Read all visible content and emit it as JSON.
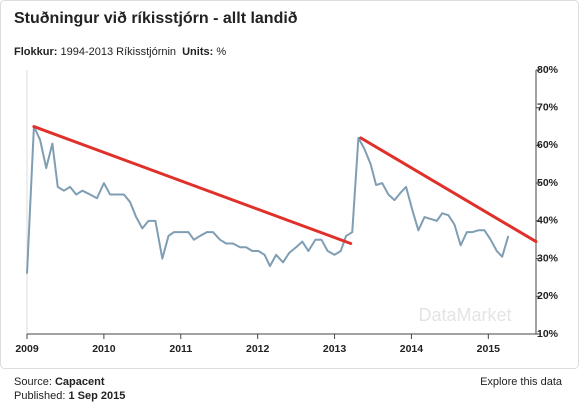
{
  "chart_data": {
    "type": "line",
    "title": "Stuðningur við ríkisstjórn - allt landið",
    "subtitle": {
      "category_label": "Flokkur:",
      "category": "1994-2013 Ríkisstjórnin",
      "units_label": "Units:",
      "units": "%"
    },
    "xlim": [
      2009,
      2015.62
    ],
    "xticks": [
      2009,
      2010,
      2011,
      2012,
      2013,
      2014,
      2015
    ],
    "ylim": [
      10,
      80
    ],
    "yticks": [
      {
        "value": 10,
        "label": "10%"
      },
      {
        "value": 20,
        "label": "20%"
      },
      {
        "value": 30,
        "label": "30%"
      },
      {
        "value": 40,
        "label": "40%"
      },
      {
        "value": 50,
        "label": "50%"
      },
      {
        "value": 60,
        "label": "60%"
      },
      {
        "value": 70,
        "label": "70%"
      },
      {
        "value": 80,
        "label": "80%"
      }
    ],
    "y_axis_side": "right",
    "grid": false,
    "series": [
      {
        "color": "#7f9eb4",
        "x": [
          2009.0,
          2009.09,
          2009.17,
          2009.25,
          2009.33,
          2009.4,
          2009.48,
          2009.56,
          2009.64,
          2009.72,
          2009.82,
          2009.91,
          2010.0,
          2010.08,
          2010.18,
          2010.26,
          2010.34,
          2010.42,
          2010.5,
          2010.58,
          2010.67,
          2010.76,
          2010.84,
          2010.91,
          2011.01,
          2011.1,
          2011.17,
          2011.25,
          2011.34,
          2011.42,
          2011.51,
          2011.59,
          2011.68,
          2011.77,
          2011.85,
          2011.93,
          2012.01,
          2012.09,
          2012.16,
          2012.24,
          2012.33,
          2012.41,
          2012.5,
          2012.58,
          2012.66,
          2012.75,
          2012.83,
          2012.91,
          2013.0,
          2013.08,
          2013.15,
          2013.23,
          2013.31,
          2013.39,
          2013.47,
          2013.54,
          2013.62,
          2013.7,
          2013.78,
          2013.86,
          2013.93,
          2014.01,
          2014.09,
          2014.17,
          2014.25,
          2014.33,
          2014.4,
          2014.48,
          2014.56,
          2014.64,
          2014.72,
          2014.79,
          2014.87,
          2014.95,
          2015.03,
          2015.11,
          2015.18,
          2015.26
        ],
        "values": [
          26,
          65,
          61.5,
          54,
          60.5,
          49,
          48,
          49,
          47,
          48,
          47,
          46,
          50,
          47,
          47,
          47,
          45,
          41,
          38,
          40,
          40,
          30,
          36,
          37,
          37,
          37,
          35,
          36,
          37,
          37,
          35,
          34,
          34,
          33,
          33,
          32,
          32,
          31,
          28,
          31,
          29,
          31.5,
          33,
          34.5,
          32,
          35,
          35,
          32,
          31,
          32,
          36,
          37,
          62,
          59,
          55,
          49.5,
          50,
          47,
          45.5,
          47.5,
          49,
          43,
          37.5,
          41,
          40.5,
          40,
          42,
          41.5,
          39,
          33.5,
          37,
          37,
          37.5,
          37.5,
          35,
          32,
          30.5,
          36
        ]
      }
    ],
    "trend_lines": [
      {
        "color": "#e0302a",
        "x": [
          2009.09,
          2013.21
        ],
        "values": [
          65,
          34
        ]
      },
      {
        "color": "#e0302a",
        "x": [
          2013.34,
          2015.62
        ],
        "values": [
          62,
          34.5
        ]
      }
    ],
    "watermark": "DataMarket",
    "source_label": "Source:",
    "source": "Capacent",
    "published_label": "Published:",
    "published": "1 Sep 2015",
    "explore_link": "Explore this data"
  }
}
